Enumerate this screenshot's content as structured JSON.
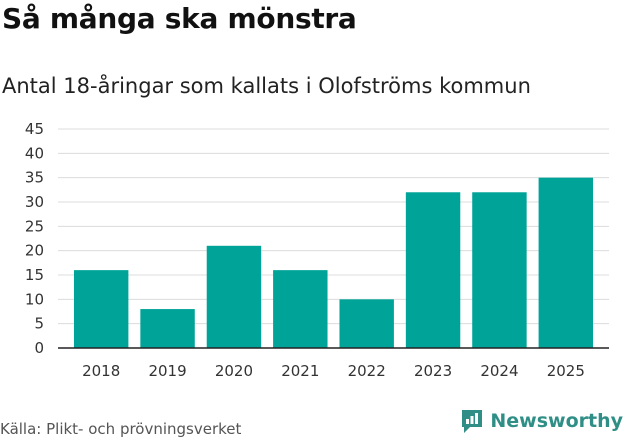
{
  "title": "Så många ska mönstra",
  "subtitle": "Antal 18-åringar som kallats i Olofströms kommun",
  "source": "Källa: Plikt- och prövningsverket",
  "brand": "Newsworthy",
  "colors": {
    "bar": "#00a398",
    "grid": "#dcdcdc",
    "axis": "#222222",
    "brand": "#2f8f86"
  },
  "chart_data": {
    "type": "bar",
    "title": "Så många ska mönstra",
    "subtitle": "Antal 18-åringar som kallats i Olofströms kommun",
    "xlabel": "",
    "ylabel": "",
    "categories": [
      "2018",
      "2019",
      "2020",
      "2021",
      "2022",
      "2023",
      "2024",
      "2025"
    ],
    "values": [
      16,
      8,
      21,
      16,
      10,
      32,
      32,
      35
    ],
    "ylim": [
      0,
      45
    ],
    "yticks": [
      0,
      5,
      10,
      15,
      20,
      25,
      30,
      35,
      40,
      45
    ],
    "grid": true
  }
}
